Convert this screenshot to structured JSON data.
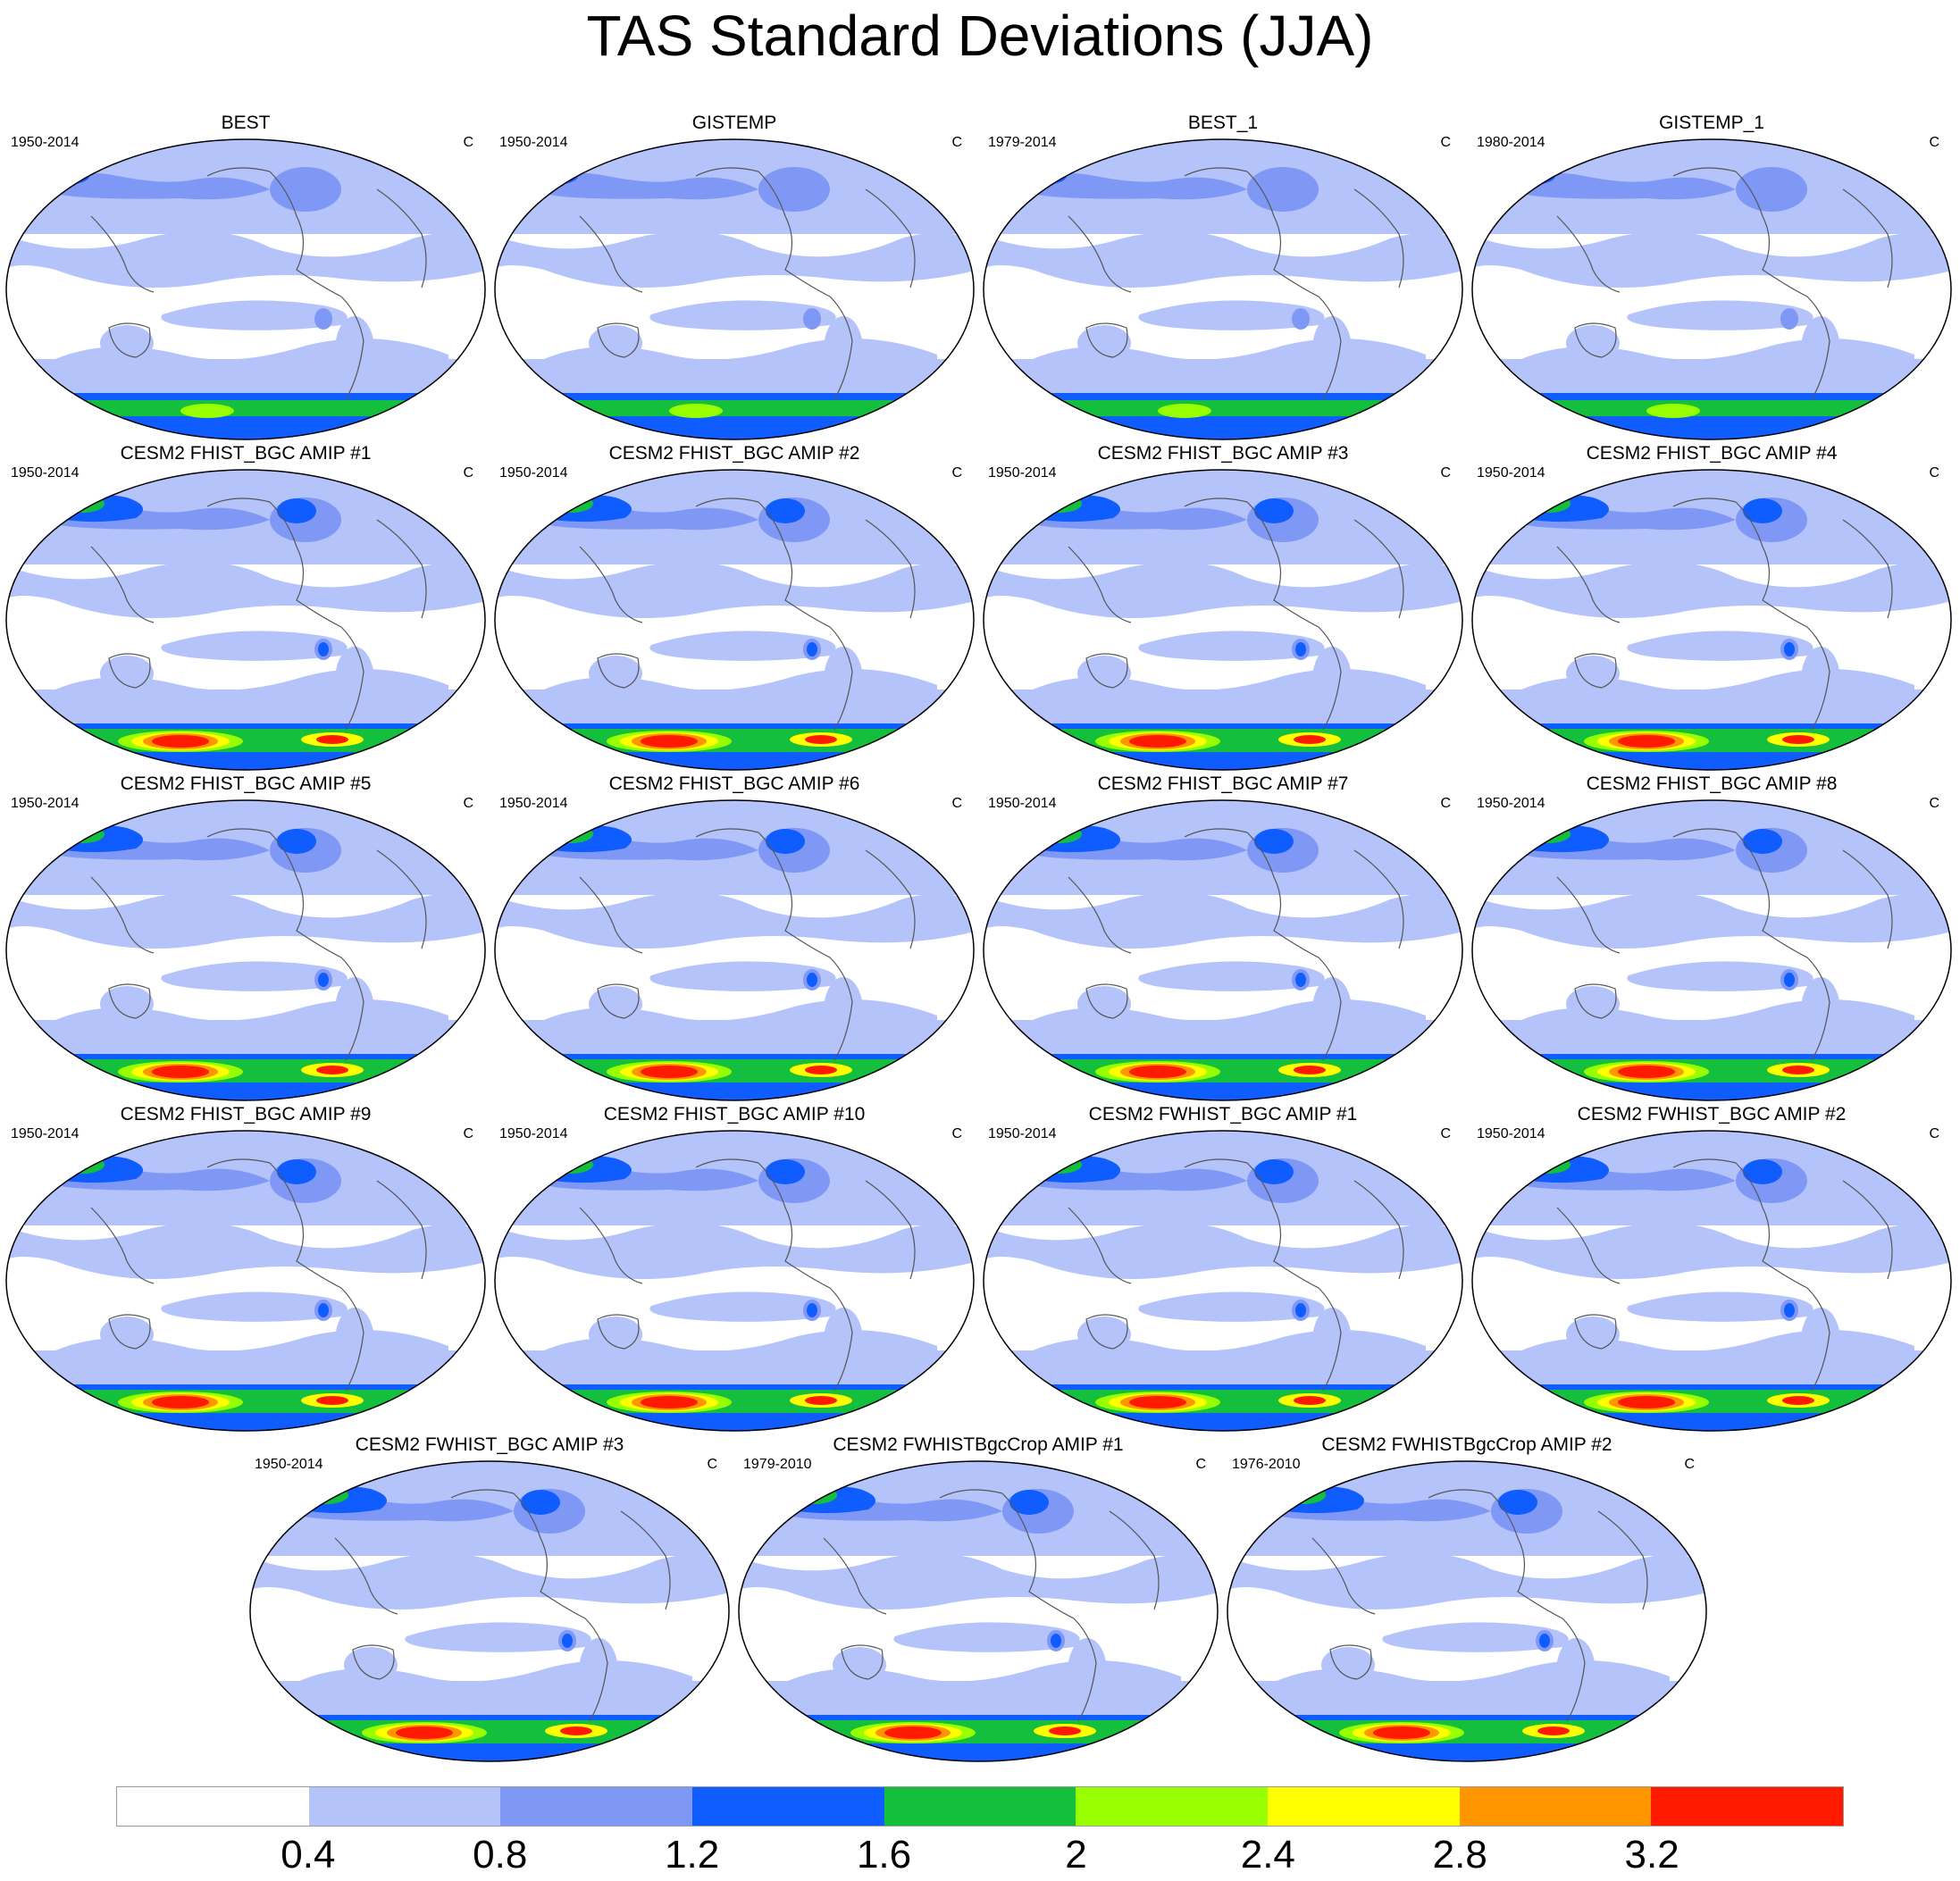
{
  "title": "TAS Standard Deviations (JJA)",
  "panels": [
    {
      "title": "BEST",
      "years": "1950-2014",
      "units": "C",
      "style": "obs"
    },
    {
      "title": "GISTEMP",
      "years": "1950-2014",
      "units": "C",
      "style": "obs"
    },
    {
      "title": "BEST_1",
      "years": "1979-2014",
      "units": "C",
      "style": "obs"
    },
    {
      "title": "GISTEMP_1",
      "years": "1980-2014",
      "units": "C",
      "style": "obs"
    },
    {
      "title": "CESM2 FHIST_BGC AMIP #1",
      "years": "1950-2014",
      "units": "C",
      "style": "model"
    },
    {
      "title": "CESM2 FHIST_BGC AMIP #2",
      "years": "1950-2014",
      "units": "C",
      "style": "model"
    },
    {
      "title": "CESM2 FHIST_BGC AMIP #3",
      "years": "1950-2014",
      "units": "C",
      "style": "model"
    },
    {
      "title": "CESM2 FHIST_BGC AMIP #4",
      "years": "1950-2014",
      "units": "C",
      "style": "model"
    },
    {
      "title": "CESM2 FHIST_BGC AMIP #5",
      "years": "1950-2014",
      "units": "C",
      "style": "model"
    },
    {
      "title": "CESM2 FHIST_BGC AMIP #6",
      "years": "1950-2014",
      "units": "C",
      "style": "model"
    },
    {
      "title": "CESM2 FHIST_BGC AMIP #7",
      "years": "1950-2014",
      "units": "C",
      "style": "model"
    },
    {
      "title": "CESM2 FHIST_BGC AMIP #8",
      "years": "1950-2014",
      "units": "C",
      "style": "model"
    },
    {
      "title": "CESM2 FHIST_BGC AMIP #9",
      "years": "1950-2014",
      "units": "C",
      "style": "model"
    },
    {
      "title": "CESM2 FHIST_BGC AMIP #10",
      "years": "1950-2014",
      "units": "C",
      "style": "model"
    },
    {
      "title": "CESM2 FWHIST_BGC AMIP #1",
      "years": "1950-2014",
      "units": "C",
      "style": "model"
    },
    {
      "title": "CESM2 FWHIST_BGC AMIP #2",
      "years": "1950-2014",
      "units": "C",
      "style": "model"
    },
    {
      "title": "CESM2 FWHIST_BGC AMIP #3",
      "years": "1950-2014",
      "units": "C",
      "style": "model"
    },
    {
      "title": "CESM2 FWHISTBgcCrop AMIP #1",
      "years": "1979-2010",
      "units": "C",
      "style": "model"
    },
    {
      "title": "CESM2 FWHISTBgcCrop AMIP #2",
      "years": "1976-2010",
      "units": "C",
      "style": "model"
    }
  ],
  "colorbar": {
    "colors": [
      "#ffffff",
      "#b4c3fa",
      "#7f98f5",
      "#0f5cff",
      "#13bf3c",
      "#98ff00",
      "#ffff00",
      "#ff9600",
      "#ff1a00"
    ],
    "labels": [
      "0.4",
      "0.8",
      "1.2",
      "1.6",
      "2",
      "2.4",
      "2.8",
      "3.2"
    ]
  }
}
